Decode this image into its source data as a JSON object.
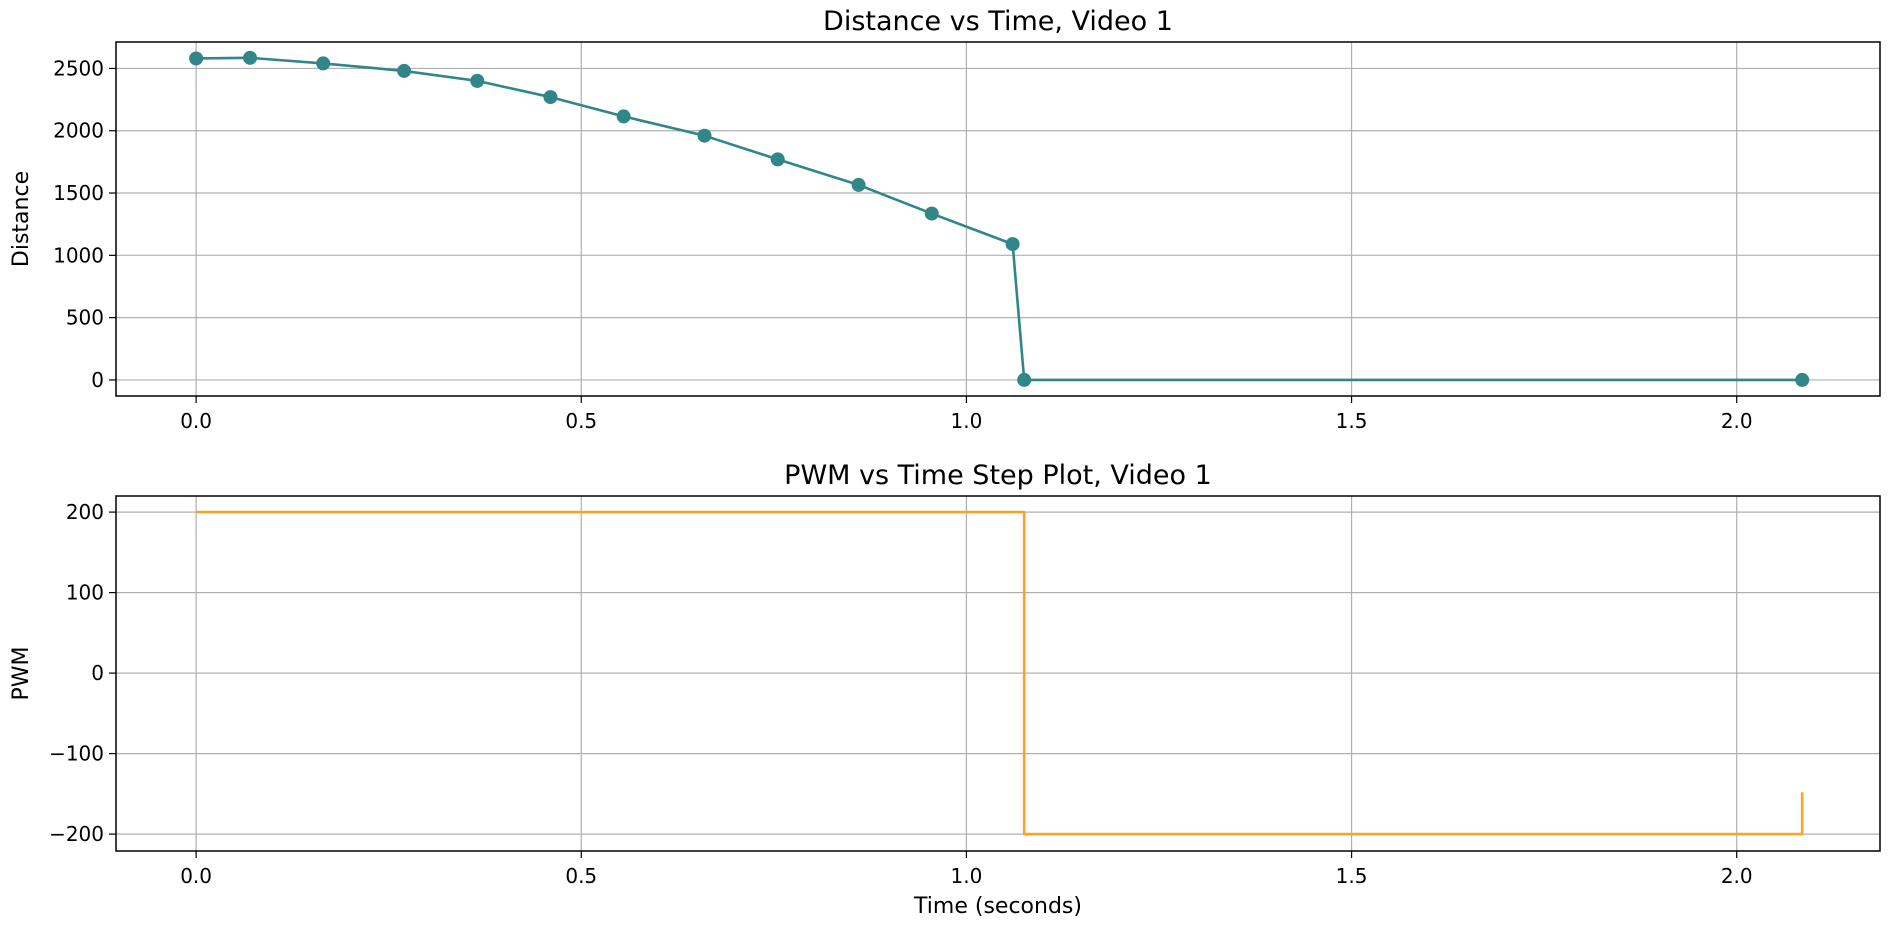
{
  "colors": {
    "distance_line": "#31868a",
    "pwm_line": "#f5a623",
    "grid": "#b0b0b0",
    "spine": "#000000"
  },
  "chart_data": [
    {
      "type": "line",
      "title": "Distance vs Time, Video 1",
      "xlabel": "",
      "ylabel": "Distance",
      "xlim": [
        -0.104,
        2.186
      ],
      "ylim": [
        -129,
        2712
      ],
      "xticks": [
        0.0,
        0.5,
        1.0,
        1.5,
        2.0
      ],
      "xtick_labels": [
        "0.0",
        "0.5",
        "1.0",
        "1.5",
        "2.0"
      ],
      "yticks": [
        0,
        500,
        1000,
        1500,
        2000,
        2500
      ],
      "ytick_labels": [
        "0",
        "500",
        "1000",
        "1500",
        "2000",
        "2500"
      ],
      "grid": true,
      "markers": true,
      "series": [
        {
          "x": [
            0.0,
            0.07,
            0.165,
            0.27,
            0.365,
            0.46,
            0.555,
            0.66,
            0.755,
            0.86,
            0.955,
            1.06,
            1.075,
            2.085
          ],
          "y": [
            2580,
            2585,
            2540,
            2480,
            2400,
            2270,
            2115,
            1960,
            1770,
            1565,
            1335,
            1090,
            0,
            0
          ]
        }
      ]
    },
    {
      "type": "line",
      "step": true,
      "title": "PWM vs Time Step Plot, Video 1",
      "xlabel": "Time (seconds)",
      "ylabel": "PWM",
      "xlim": [
        -0.104,
        2.186
      ],
      "ylim": [
        -221,
        220
      ],
      "xticks": [
        0.0,
        0.5,
        1.0,
        1.5,
        2.0
      ],
      "xtick_labels": [
        "0.0",
        "0.5",
        "1.0",
        "1.5",
        "2.0"
      ],
      "yticks": [
        200,
        100,
        0,
        -100,
        -200
      ],
      "ytick_labels": [
        "200",
        "100",
        "0",
        "−100",
        "−200"
      ],
      "grid": true,
      "markers": false,
      "series": [
        {
          "x": [
            0.0,
            1.075,
            1.075,
            2.085,
            2.085
          ],
          "y": [
            200,
            200,
            -200,
            -200,
            -148
          ]
        }
      ]
    }
  ]
}
